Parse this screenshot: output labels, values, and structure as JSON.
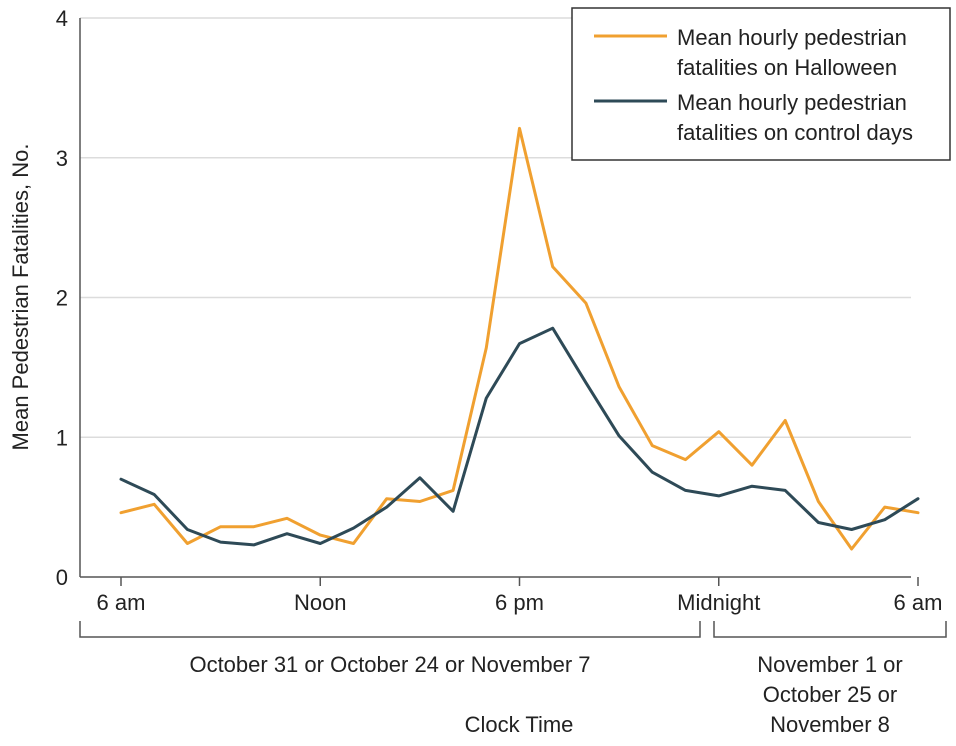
{
  "chart_data": {
    "type": "line",
    "ylabel": "Mean Pedestrian Fatalities, No.",
    "xlabel": "Clock Time",
    "ylim": [
      0,
      4
    ],
    "yticks": [
      "0",
      "1",
      "2",
      "3",
      "4"
    ],
    "xlim": [
      6,
      30
    ],
    "xticks": [
      {
        "hour": 6,
        "label": "6 am"
      },
      {
        "hour": 12,
        "label": "Noon"
      },
      {
        "hour": 18,
        "label": "6 pm"
      },
      {
        "hour": 24,
        "label": "Midnight"
      },
      {
        "hour": 30,
        "label": "6 am"
      }
    ],
    "day_groups": [
      {
        "label": "October 31 or October 24 or November 7"
      },
      {
        "label_lines": [
          "November 1 or",
          "October 25 or",
          "November 8"
        ]
      }
    ],
    "x": [
      6,
      7,
      8,
      9,
      10,
      11,
      12,
      13,
      14,
      15,
      16,
      17,
      18,
      19,
      20,
      21,
      22,
      23,
      24,
      25,
      26,
      27,
      28,
      29,
      30
    ],
    "series": [
      {
        "name": "Mean hourly pedestrian fatalities on Halloween",
        "legend_lines": [
          "Mean hourly pedestrian",
          "fatalities on Halloween"
        ],
        "color": "#f0a030",
        "values": [
          0.46,
          0.52,
          0.24,
          0.36,
          0.36,
          0.42,
          0.3,
          0.24,
          0.56,
          0.54,
          0.62,
          1.64,
          3.21,
          2.22,
          1.96,
          1.36,
          0.94,
          0.84,
          1.04,
          0.8,
          1.12,
          0.54,
          0.2,
          0.5,
          0.46
        ]
      },
      {
        "name": "Mean hourly pedestrian fatalities on control days",
        "legend_lines": [
          "Mean hourly pedestrian",
          "fatalities on control days"
        ],
        "color": "#2e4a57",
        "values": [
          0.7,
          0.59,
          0.34,
          0.25,
          0.23,
          0.31,
          0.24,
          0.35,
          0.5,
          0.71,
          0.47,
          1.28,
          1.67,
          1.78,
          1.39,
          1.01,
          0.75,
          0.62,
          0.58,
          0.65,
          0.62,
          0.39,
          0.34,
          0.41,
          0.56
        ]
      }
    ],
    "legend_position": "top-right"
  }
}
